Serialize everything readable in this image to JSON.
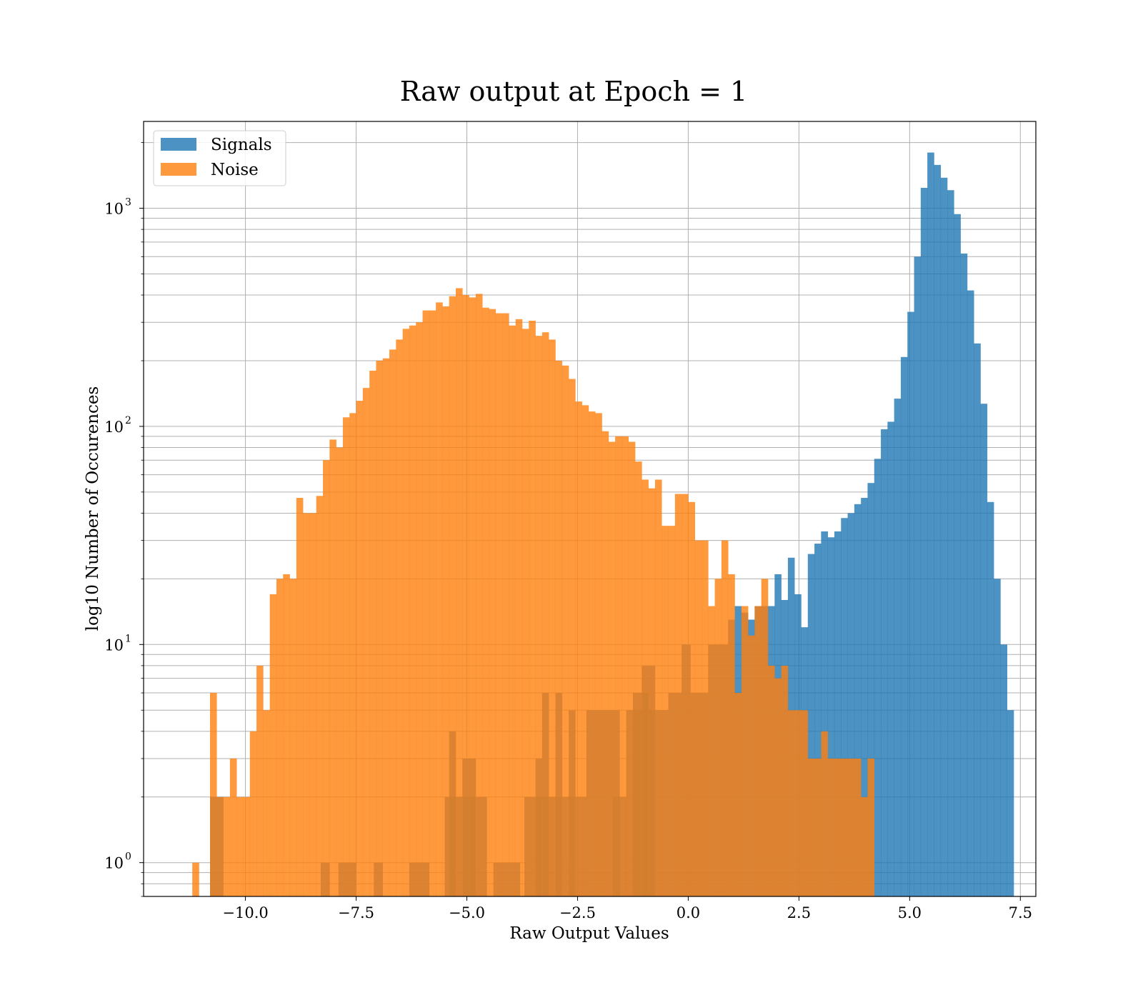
{
  "chart_data": {
    "type": "bar",
    "subtype": "histogram",
    "title": "Raw output at Epoch = 1",
    "xlabel": "Raw Output Values",
    "ylabel": "log10 Number of Occurences",
    "xlim": [
      -12.3,
      7.85
    ],
    "ylim": [
      0.7,
      2500
    ],
    "yscale": "log",
    "grid": true,
    "legend_position": "top-left",
    "x_ticks": [
      "−10.0",
      "−7.5",
      "−5.0",
      "−2.5",
      "0.0",
      "2.5",
      "5.0",
      "7.5"
    ],
    "x_tick_values": [
      -10,
      -7.5,
      -5,
      -2.5,
      0,
      2.5,
      5,
      7.5
    ],
    "y_ticks": [
      {
        "value": 1,
        "base": "10",
        "exp": "0"
      },
      {
        "value": 10,
        "base": "10",
        "exp": "1"
      },
      {
        "value": 100,
        "base": "10",
        "exp": "2"
      },
      {
        "value": 1000,
        "base": "10",
        "exp": "3"
      }
    ],
    "series": [
      {
        "name": "Signals",
        "color": "#1f77b4",
        "bins": [
          [
            -10.8,
            -10.5,
            2
          ],
          [
            -10.5,
            -9.5,
            0
          ],
          [
            -8.3,
            -8.1,
            1
          ],
          [
            -7.9,
            -7.5,
            1
          ],
          [
            -7.1,
            -6.9,
            1
          ],
          [
            -6.3,
            -5.85,
            1
          ],
          [
            -5.5,
            -4.55,
            2
          ],
          [
            -5.4,
            -5.25,
            4
          ],
          [
            -5.1,
            -4.8,
            3
          ],
          [
            -4.4,
            -3.8,
            1
          ],
          [
            -3.7,
            -2.3,
            2
          ],
          [
            -3.45,
            -3.3,
            3
          ],
          [
            -3.3,
            -3.15,
            6
          ],
          [
            -3.0,
            -2.85,
            6
          ],
          [
            -2.7,
            -2.55,
            5
          ],
          [
            -2.3,
            -1.55,
            5
          ],
          [
            -1.7,
            -1.4,
            2
          ],
          [
            -1.4,
            -0.45,
            5
          ],
          [
            -1.25,
            -0.9,
            6
          ],
          [
            -1.05,
            -0.75,
            8
          ],
          [
            -0.45,
            -0.15,
            6
          ],
          [
            -0.15,
            0.05,
            10
          ],
          [
            0.05,
            0.45,
            6
          ],
          [
            0.45,
            0.9,
            10
          ],
          [
            0.9,
            1.05,
            13
          ],
          [
            1.05,
            1.2,
            15
          ],
          [
            1.2,
            1.35,
            14
          ],
          [
            1.35,
            1.5,
            13
          ],
          [
            1.5,
            1.65,
            15
          ],
          [
            1.65,
            1.8,
            15
          ],
          [
            1.8,
            1.95,
            15
          ],
          [
            1.95,
            2.1,
            21
          ],
          [
            2.1,
            2.25,
            16
          ],
          [
            2.25,
            2.4,
            25
          ],
          [
            2.4,
            2.55,
            17
          ],
          [
            2.55,
            2.7,
            12
          ],
          [
            2.7,
            2.85,
            26
          ],
          [
            2.85,
            3.0,
            29
          ],
          [
            3.0,
            3.15,
            33
          ],
          [
            3.15,
            3.3,
            31
          ],
          [
            3.3,
            3.45,
            33
          ],
          [
            3.45,
            3.6,
            38
          ],
          [
            3.6,
            3.75,
            40
          ],
          [
            3.75,
            3.9,
            44
          ],
          [
            3.9,
            4.05,
            47
          ],
          [
            4.05,
            4.2,
            55
          ],
          [
            4.2,
            4.35,
            71
          ],
          [
            4.35,
            4.5,
            97
          ],
          [
            4.5,
            4.65,
            105
          ],
          [
            4.65,
            4.8,
            134
          ],
          [
            4.8,
            4.95,
            208
          ],
          [
            4.95,
            5.1,
            335
          ],
          [
            5.1,
            5.25,
            600
          ],
          [
            5.25,
            5.4,
            1240
          ],
          [
            5.4,
            5.55,
            1800
          ],
          [
            5.55,
            5.7,
            1580
          ],
          [
            5.7,
            5.85,
            1380
          ],
          [
            5.85,
            6.0,
            1210
          ],
          [
            6.0,
            6.15,
            940
          ],
          [
            6.15,
            6.3,
            620
          ],
          [
            6.3,
            6.45,
            420
          ],
          [
            6.45,
            6.6,
            240
          ],
          [
            6.6,
            6.75,
            127
          ],
          [
            6.75,
            6.9,
            45
          ],
          [
            6.9,
            7.05,
            20
          ],
          [
            7.05,
            7.2,
            10
          ],
          [
            7.2,
            7.35,
            5
          ]
        ]
      },
      {
        "name": "Noise",
        "color": "#ff7f0e",
        "bins": [
          [
            -11.2,
            -11.05,
            1
          ],
          [
            -10.8,
            -10.65,
            6
          ],
          [
            -10.65,
            -10.35,
            2
          ],
          [
            -10.35,
            -10.2,
            3
          ],
          [
            -10.2,
            -10.05,
            2
          ],
          [
            -10.05,
            -9.9,
            2
          ],
          [
            -9.9,
            -9.75,
            4
          ],
          [
            -9.75,
            -9.6,
            8
          ],
          [
            -9.6,
            -9.45,
            5
          ],
          [
            -9.45,
            -9.3,
            17
          ],
          [
            -9.3,
            -9.15,
            20
          ],
          [
            -9.15,
            -9.0,
            21
          ],
          [
            -9.0,
            -8.85,
            20
          ],
          [
            -8.85,
            -8.7,
            47
          ],
          [
            -8.7,
            -8.55,
            40
          ],
          [
            -8.55,
            -8.4,
            40
          ],
          [
            -8.4,
            -8.25,
            48
          ],
          [
            -8.25,
            -8.1,
            70
          ],
          [
            -8.1,
            -7.95,
            87
          ],
          [
            -7.95,
            -7.8,
            80
          ],
          [
            -7.8,
            -7.65,
            110
          ],
          [
            -7.65,
            -7.5,
            115
          ],
          [
            -7.5,
            -7.35,
            131
          ],
          [
            -7.35,
            -7.2,
            150
          ],
          [
            -7.2,
            -7.05,
            180
          ],
          [
            -7.05,
            -6.9,
            200
          ],
          [
            -6.9,
            -6.75,
            205
          ],
          [
            -6.75,
            -6.6,
            225
          ],
          [
            -6.6,
            -6.45,
            250
          ],
          [
            -6.45,
            -6.3,
            280
          ],
          [
            -6.3,
            -6.15,
            290
          ],
          [
            -6.15,
            -6.0,
            300
          ],
          [
            -6.0,
            -5.85,
            340
          ],
          [
            -5.85,
            -5.7,
            340
          ],
          [
            -5.7,
            -5.55,
            370
          ],
          [
            -5.55,
            -5.4,
            355
          ],
          [
            -5.4,
            -5.25,
            395
          ],
          [
            -5.25,
            -5.1,
            430
          ],
          [
            -5.1,
            -4.95,
            400
          ],
          [
            -4.95,
            -4.8,
            390
          ],
          [
            -4.8,
            -4.65,
            405
          ],
          [
            -4.65,
            -4.5,
            350
          ],
          [
            -4.5,
            -4.35,
            345
          ],
          [
            -4.35,
            -4.2,
            330
          ],
          [
            -4.2,
            -4.05,
            330
          ],
          [
            -4.05,
            -3.9,
            290
          ],
          [
            -3.9,
            -3.75,
            310
          ],
          [
            -3.75,
            -3.6,
            280
          ],
          [
            -3.6,
            -3.45,
            305
          ],
          [
            -3.45,
            -3.3,
            260
          ],
          [
            -3.3,
            -3.15,
            270
          ],
          [
            -3.15,
            -3.0,
            250
          ],
          [
            -3.0,
            -2.85,
            200
          ],
          [
            -2.85,
            -2.7,
            190
          ],
          [
            -2.7,
            -2.55,
            165
          ],
          [
            -2.55,
            -2.4,
            130
          ],
          [
            -2.4,
            -2.25,
            125
          ],
          [
            -2.25,
            -2.1,
            117
          ],
          [
            -2.1,
            -1.95,
            115
          ],
          [
            -1.95,
            -1.8,
            95
          ],
          [
            -1.8,
            -1.65,
            85
          ],
          [
            -1.65,
            -1.5,
            90
          ],
          [
            -1.5,
            -1.35,
            90
          ],
          [
            -1.35,
            -1.2,
            85
          ],
          [
            -1.2,
            -1.05,
            69
          ],
          [
            -1.05,
            -0.9,
            57
          ],
          [
            -0.9,
            -0.75,
            52
          ],
          [
            -0.75,
            -0.6,
            57
          ],
          [
            -0.6,
            -0.45,
            35
          ],
          [
            -0.45,
            -0.3,
            35
          ],
          [
            -0.3,
            -0.15,
            49
          ],
          [
            -0.15,
            0.0,
            49
          ],
          [
            0.0,
            0.15,
            45
          ],
          [
            0.15,
            0.3,
            30
          ],
          [
            0.3,
            0.45,
            30
          ],
          [
            0.45,
            0.6,
            15
          ],
          [
            0.6,
            0.75,
            20
          ],
          [
            0.75,
            0.9,
            30
          ],
          [
            0.9,
            1.05,
            21
          ],
          [
            1.05,
            1.2,
            6
          ],
          [
            1.2,
            1.35,
            15
          ],
          [
            1.35,
            1.5,
            11
          ],
          [
            1.5,
            1.65,
            15
          ],
          [
            1.65,
            1.8,
            20
          ],
          [
            1.8,
            1.95,
            8
          ],
          [
            1.95,
            2.1,
            7
          ],
          [
            2.1,
            2.25,
            8
          ],
          [
            2.25,
            2.4,
            5
          ],
          [
            2.4,
            2.55,
            5
          ],
          [
            2.55,
            2.7,
            5
          ],
          [
            2.7,
            2.85,
            3
          ],
          [
            2.85,
            3.0,
            3
          ],
          [
            3.0,
            3.15,
            4
          ],
          [
            3.15,
            3.3,
            3
          ],
          [
            3.3,
            3.45,
            3
          ],
          [
            3.45,
            3.6,
            3
          ],
          [
            3.6,
            3.75,
            3
          ],
          [
            3.75,
            3.9,
            3
          ],
          [
            3.9,
            4.05,
            2
          ],
          [
            4.05,
            4.2,
            3
          ]
        ]
      }
    ]
  }
}
